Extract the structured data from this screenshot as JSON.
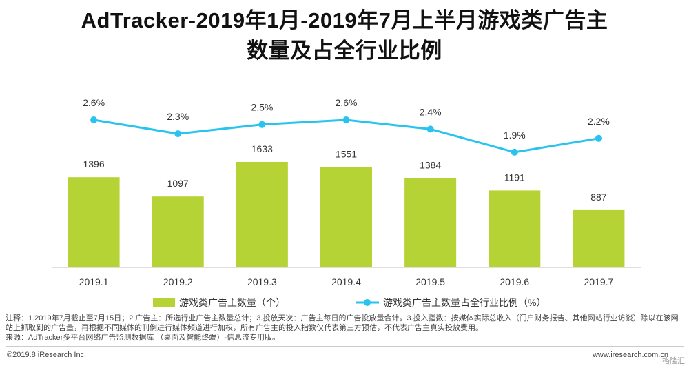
{
  "title_line1": "AdTracker-2019年1月-2019年7月上半月游戏类广告主",
  "title_line2": "数量及占全行业比例",
  "chart_data": {
    "type": "bar",
    "categories": [
      "2019.1",
      "2019.2",
      "2019.3",
      "2019.4",
      "2019.5",
      "2019.6",
      "2019.7"
    ],
    "series": [
      {
        "name": "游戏类广告主数量（个）",
        "type": "bar",
        "color": "#b5d334",
        "values": [
          1396,
          1097,
          1633,
          1551,
          1384,
          1191,
          887
        ],
        "labels": [
          "1396",
          "1097",
          "1633",
          "1551",
          "1384",
          "1191",
          "887"
        ]
      },
      {
        "name": "游戏类广告主数量占全行业比例（%）",
        "type": "line",
        "color": "#29c3ef",
        "values": [
          2.6,
          2.3,
          2.5,
          2.6,
          2.4,
          1.9,
          2.2
        ],
        "labels": [
          "2.6%",
          "2.3%",
          "2.5%",
          "2.6%",
          "2.4%",
          "1.9%",
          "2.2%"
        ]
      }
    ],
    "legend_position": "bottom"
  },
  "notes": {
    "line1": "注释：1.2019年7月截止至7月15日；2.广告主：所选行业广告主数量总计；3.投放天次：广告主每日的广告投放量合计。3.投入指数：按媒体实际总收入（门户财务报告、其他网站行业访谈）除以在该网站上抓取到的广告量，再根据不同媒体的刊例进行媒体频道进行加权，所有广告主的投入指数仅代表第三方预估，不代表广告主真实投放费用。",
    "line2": "来源：AdTracker多平台网络广告监测数据库 （桌面及智能终端）-信息流专用版。"
  },
  "footer": {
    "copyright": "©2019.8 iResearch Inc.",
    "website": "www.iresearch.com.cn",
    "watermark": "格隆汇"
  }
}
